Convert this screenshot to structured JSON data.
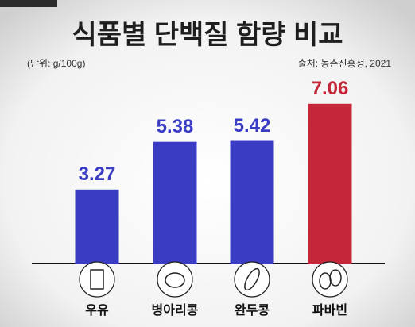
{
  "chart_data": {
    "type": "bar",
    "title": "식품별 단백질 함량 비교",
    "subtitle": "(단위: g/100g)",
    "source": "출처: 농촌진흥청, 2021",
    "categories": [
      "우유",
      "병아리콩",
      "완두콩",
      "파바빈"
    ],
    "values": [
      3.27,
      5.38,
      5.42,
      7.06
    ],
    "colors": [
      "#3a3dc4",
      "#3a3dc4",
      "#3a3dc4",
      "#c52638"
    ]
  }
}
